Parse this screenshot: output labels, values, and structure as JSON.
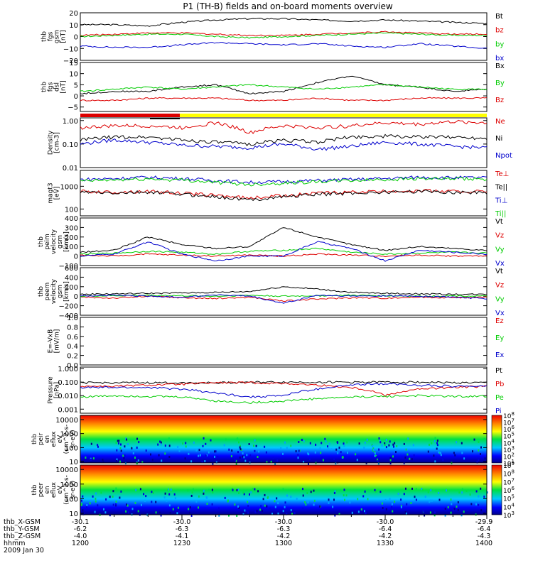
{
  "title": "P1 (TH-B) fields and on-board moments overview",
  "time_axis": {
    "rows": [
      {
        "label": "thb_X-GSM",
        "values": [
          "-30.1",
          "-30.0",
          "-30.0",
          "-30.0",
          "-29.9"
        ]
      },
      {
        "label": "thb_Y-GSM",
        "values": [
          "-6.2",
          "-6.3",
          "-6.3",
          "-6.4",
          "-6.4"
        ]
      },
      {
        "label": "thb_Z-GSM",
        "values": [
          "-4.0",
          "-4.1",
          "-4.2",
          "-4.2",
          "-4.3"
        ]
      },
      {
        "label": "hhmm",
        "values": [
          "1200",
          "1230",
          "1300",
          "1330",
          "1400"
        ]
      }
    ],
    "date": "2009 Jan 30"
  },
  "panels": [
    {
      "id": "fgs",
      "ylabel": [
        "thb",
        "fgs",
        "gsm",
        "[nT]"
      ],
      "log": false,
      "ylim": [
        -20,
        20
      ],
      "ticks": [
        {
          "v": 20,
          "t": "20"
        },
        {
          "v": 10,
          "t": "10"
        },
        {
          "v": 0,
          "t": "0"
        },
        {
          "v": -10,
          "t": "−10"
        },
        {
          "v": -20,
          "t": "−20"
        }
      ],
      "legend": [
        {
          "t": "Bt",
          "c": "#000000"
        },
        {
          "t": "bz",
          "c": "#dd0000"
        },
        {
          "t": "by",
          "c": "#00cc00"
        },
        {
          "t": "bx",
          "c": "#0000cc"
        }
      ]
    },
    {
      "id": "fgs-dsl",
      "ylabel": [
        "thb",
        "fgs",
        "dsl",
        "[nT]"
      ],
      "log": false,
      "ylim": [
        -7,
        15
      ],
      "ticks": [
        {
          "v": 15,
          "t": "15"
        },
        {
          "v": 10,
          "t": "10"
        },
        {
          "v": 5,
          "t": "5"
        },
        {
          "v": 0,
          "t": "0"
        },
        {
          "v": -5,
          "t": "−5"
        }
      ],
      "legend": [
        {
          "t": "Bx",
          "c": "#000000"
        },
        {
          "t": "By",
          "c": "#00cc00"
        },
        {
          "t": "Bz",
          "c": "#dd0000"
        }
      ]
    },
    {
      "id": "density",
      "ylabel": [
        "Density",
        "[cm-3]"
      ],
      "log": true,
      "ylim": [
        0.01,
        1.3
      ],
      "ticks": [
        {
          "v": 1.0,
          "t": "1.00"
        },
        {
          "v": 0.1,
          "t": "0.10"
        },
        {
          "v": 0.01,
          "t": "0.01"
        }
      ],
      "legend": [
        {
          "t": "Ne",
          "c": "#dd0000"
        },
        {
          "t": "Ni",
          "c": "#000000"
        },
        {
          "t": "Npot",
          "c": "#0000cc"
        }
      ]
    },
    {
      "id": "temp",
      "ylabel": [
        "magt3",
        "[eV]"
      ],
      "log": true,
      "ylim": [
        50,
        5000
      ],
      "ticks": [
        {
          "v": 1000,
          "t": "1000"
        },
        {
          "v": 100,
          "t": "100"
        }
      ],
      "legend": [
        {
          "t": "Te⊥",
          "c": "#dd0000"
        },
        {
          "t": "Te||",
          "c": "#000000"
        },
        {
          "t": "Ti⊥",
          "c": "#0000cc"
        },
        {
          "t": "Ti||",
          "c": "#00cc00"
        }
      ]
    },
    {
      "id": "peim-vel",
      "ylabel": [
        "thb",
        "peim",
        "velocity",
        "gsm",
        "[km/s]"
      ],
      "log": false,
      "ylim": [
        -100,
        400
      ],
      "ticks": [
        {
          "v": 400,
          "t": "400"
        },
        {
          "v": 300,
          "t": "300"
        },
        {
          "v": 200,
          "t": "200"
        },
        {
          "v": 100,
          "t": "100"
        },
        {
          "v": 0,
          "t": "0"
        },
        {
          "v": -100,
          "t": "−100"
        }
      ],
      "legend": [
        {
          "t": "Vt",
          "c": "#000000"
        },
        {
          "t": "Vz",
          "c": "#dd0000"
        },
        {
          "t": "Vy",
          "c": "#00cc00"
        },
        {
          "t": "Vx",
          "c": "#0000cc"
        }
      ]
    },
    {
      "id": "peem-vel",
      "ylabel": [
        "thb",
        "peem",
        "velocity",
        "gsm",
        "[km/s]"
      ],
      "log": false,
      "ylim": [
        -400,
        600
      ],
      "ticks": [
        {
          "v": 600,
          "t": "600"
        },
        {
          "v": 400,
          "t": "400"
        },
        {
          "v": 200,
          "t": "200"
        },
        {
          "v": 0,
          "t": "0"
        },
        {
          "v": -200,
          "t": "−200"
        },
        {
          "v": -400,
          "t": "−400"
        }
      ],
      "legend": [
        {
          "t": "Vt",
          "c": "#000000"
        },
        {
          "t": "Vz",
          "c": "#dd0000"
        },
        {
          "t": "Vy",
          "c": "#00cc00"
        },
        {
          "t": "Vx",
          "c": "#0000cc"
        }
      ]
    },
    {
      "id": "efield",
      "ylabel": [
        "E=-VxB",
        "[mV/m]"
      ],
      "log": false,
      "ylim": [
        0,
        1
      ],
      "ticks": [
        {
          "v": 1.0,
          "t": "1.0"
        },
        {
          "v": 0.8,
          "t": "0.8"
        },
        {
          "v": 0.6,
          "t": "0.6"
        },
        {
          "v": 0.4,
          "t": "0.4"
        },
        {
          "v": 0.2,
          "t": "0.2"
        },
        {
          "v": 0.0,
          "t": "0.0"
        }
      ],
      "legend": [
        {
          "t": "Ez",
          "c": "#dd0000"
        },
        {
          "t": "Ey",
          "c": "#00cc00"
        },
        {
          "t": "Ex",
          "c": "#0000cc"
        }
      ]
    },
    {
      "id": "pressure",
      "ylabel": [
        "Pressure",
        "[nPa]"
      ],
      "log": true,
      "ylim": [
        0.0005,
        1.3
      ],
      "ticks": [
        {
          "v": 1.0,
          "t": "1.000"
        },
        {
          "v": 0.1,
          "t": "0.100"
        },
        {
          "v": 0.01,
          "t": "0.010"
        },
        {
          "v": 0.001,
          "t": "0.001"
        }
      ],
      "legend": [
        {
          "t": "Pt",
          "c": "#000000"
        },
        {
          "t": "Pb",
          "c": "#dd0000"
        },
        {
          "t": "Pe",
          "c": "#00cc00"
        },
        {
          "t": "Pi",
          "c": "#0000cc"
        }
      ]
    },
    {
      "id": "peir-eflux",
      "ylabel": [
        "thb",
        "peir",
        "en",
        "eflux",
        "eV",
        "(cm^2-s-",
        "sr-eV)"
      ],
      "log": true,
      "ylim": [
        8,
        20000
      ],
      "ticks": [
        {
          "v": 10000,
          "t": "10000"
        },
        {
          "v": 1000,
          "t": "1000"
        },
        {
          "v": 100,
          "t": "100"
        },
        {
          "v": 10,
          "t": "10"
        }
      ],
      "colorbar": [
        {
          "b": "10",
          "e": "8"
        },
        {
          "b": "10",
          "e": "7"
        },
        {
          "b": "10",
          "e": "6"
        },
        {
          "b": "10",
          "e": "5"
        },
        {
          "b": "10",
          "e": "4"
        },
        {
          "b": "10",
          "e": "3"
        },
        {
          "b": "10",
          "e": "2"
        },
        {
          "b": "10",
          "e": "1"
        }
      ]
    },
    {
      "id": "peer-eflux",
      "ylabel": [
        "thb",
        "peer",
        "en",
        "eflux",
        "eV",
        "(cm^2-s-",
        "sr-eV)"
      ],
      "log": true,
      "ylim": [
        8,
        20000
      ],
      "ticks": [
        {
          "v": 10000,
          "t": "10000"
        },
        {
          "v": 1000,
          "t": "1000"
        },
        {
          "v": 100,
          "t": "100"
        },
        {
          "v": 10,
          "t": "10"
        }
      ],
      "colorbar": [
        {
          "b": "10",
          "e": "9"
        },
        {
          "b": "10",
          "e": "8"
        },
        {
          "b": "10",
          "e": "7"
        },
        {
          "b": "10",
          "e": "6"
        },
        {
          "b": "10",
          "e": "5"
        },
        {
          "b": "10",
          "e": "4"
        },
        {
          "b": "10",
          "e": "3"
        }
      ]
    }
  ],
  "chart_data": {
    "type": "line",
    "x_unit": "hhmm",
    "x": [
      "1200",
      "1210",
      "1220",
      "1230",
      "1240",
      "1250",
      "1300",
      "1310",
      "1320",
      "1330",
      "1340",
      "1350",
      "1400"
    ],
    "panels": [
      {
        "panel": "fgs",
        "series": [
          {
            "name": "Bt",
            "color": "#000000",
            "values": [
              10,
              10,
              9,
              12,
              14,
              15,
              15,
              14,
              13,
              14,
              13,
              12,
              11
            ]
          },
          {
            "name": "bz",
            "color": "#dd0000",
            "values": [
              1,
              2,
              3,
              3,
              2,
              1,
              1,
              2,
              3,
              4,
              3,
              2,
              2
            ]
          },
          {
            "name": "by",
            "color": "#00cc00",
            "values": [
              0,
              1,
              2,
              2,
              0,
              -1,
              0,
              1,
              2,
              3,
              2,
              1,
              1
            ]
          },
          {
            "name": "bx",
            "color": "#0000cc",
            "values": [
              -8,
              -9,
              -9,
              -7,
              -5,
              -6,
              -7,
              -6,
              -8,
              -9,
              -6,
              -8,
              -10
            ]
          }
        ]
      },
      {
        "panel": "fgs-dsl",
        "series": [
          {
            "name": "Bx",
            "color": "#000000",
            "values": [
              1,
              2,
              2,
              4,
              5,
              1,
              2,
              6,
              9,
              5,
              4,
              2,
              3
            ]
          },
          {
            "name": "By",
            "color": "#00cc00",
            "values": [
              2,
              3,
              4,
              3,
              4,
              5,
              4,
              3,
              4,
              5,
              4,
              3,
              3
            ]
          },
          {
            "name": "Bz",
            "color": "#dd0000",
            "values": [
              -2,
              -2,
              -1,
              -1,
              -1,
              -2,
              -2,
              -1,
              -2,
              -2,
              -1,
              -1,
              -1
            ]
          }
        ]
      },
      {
        "panel": "density",
        "series": [
          {
            "name": "Ne",
            "color": "#dd0000",
            "values": [
              0.5,
              0.6,
              0.6,
              0.5,
              0.8,
              0.3,
              0.6,
              0.5,
              0.6,
              0.8,
              0.7,
              0.9,
              0.8
            ]
          },
          {
            "name": "Ni",
            "color": "#000000",
            "values": [
              0.15,
              0.2,
              0.2,
              0.15,
              0.12,
              0.1,
              0.15,
              0.12,
              0.2,
              0.22,
              0.2,
              0.2,
              0.18
            ]
          },
          {
            "name": "Npot",
            "color": "#0000cc",
            "values": [
              0.1,
              0.15,
              0.12,
              0.09,
              0.08,
              0.07,
              0.1,
              0.06,
              0.08,
              0.12,
              0.1,
              0.08,
              0.07
            ]
          }
        ]
      },
      {
        "panel": "temp",
        "series": [
          {
            "name": "Te⊥",
            "color": "#dd0000",
            "values": [
              600,
              550,
              600,
              500,
              400,
              300,
              400,
              500,
              550,
              600,
              650,
              600,
              600
            ]
          },
          {
            "name": "Te||",
            "color": "#000000",
            "values": [
              550,
              500,
              550,
              450,
              350,
              250,
              350,
              450,
              500,
              550,
              600,
              550,
              550
            ]
          },
          {
            "name": "Ti⊥",
            "color": "#0000cc",
            "values": [
              2000,
              2200,
              2500,
              2200,
              1800,
              1500,
              1600,
              1800,
              2000,
              2200,
              2500,
              2400,
              2400
            ]
          },
          {
            "name": "Ti||",
            "color": "#00cc00",
            "values": [
              1700,
              1900,
              2100,
              1900,
              1500,
              1200,
              1400,
              1600,
              1800,
              2000,
              2200,
              2100,
              2100
            ]
          }
        ]
      },
      {
        "panel": "peim-vel",
        "series": [
          {
            "name": "Vt",
            "color": "#000000",
            "values": [
              40,
              60,
              200,
              120,
              80,
              100,
              300,
              200,
              120,
              60,
              100,
              80,
              60
            ]
          },
          {
            "name": "Vz",
            "color": "#dd0000",
            "values": [
              10,
              0,
              20,
              10,
              0,
              10,
              0,
              20,
              10,
              0,
              10,
              0,
              0
            ]
          },
          {
            "name": "Vy",
            "color": "#00cc00",
            "values": [
              20,
              30,
              50,
              40,
              20,
              50,
              60,
              80,
              40,
              20,
              30,
              40,
              30
            ]
          },
          {
            "name": "Vx",
            "color": "#0000cc",
            "values": [
              0,
              20,
              150,
              20,
              -50,
              0,
              0,
              150,
              80,
              -50,
              60,
              40,
              20
            ]
          }
        ]
      },
      {
        "panel": "peem-vel",
        "series": [
          {
            "name": "Vt",
            "color": "#000000",
            "values": [
              40,
              50,
              60,
              70,
              80,
              100,
              200,
              150,
              80,
              60,
              50,
              40,
              40
            ]
          },
          {
            "name": "Vz",
            "color": "#dd0000",
            "values": [
              -20,
              -40,
              0,
              -30,
              -50,
              -20,
              -100,
              -60,
              -30,
              -40,
              -20,
              -30,
              -20
            ]
          },
          {
            "name": "Vy",
            "color": "#00cc00",
            "values": [
              0,
              10,
              20,
              10,
              0,
              20,
              0,
              10,
              20,
              10,
              0,
              10,
              0
            ]
          },
          {
            "name": "Vx",
            "color": "#0000cc",
            "values": [
              10,
              20,
              0,
              -20,
              30,
              0,
              -150,
              20,
              0,
              10,
              0,
              -20,
              -50
            ]
          }
        ]
      },
      {
        "panel": "pressure",
        "series": [
          {
            "name": "Pt",
            "color": "#000000",
            "values": [
              0.09,
              0.09,
              0.09,
              0.09,
              0.09,
              0.1,
              0.1,
              0.1,
              0.1,
              0.1,
              0.1,
              0.09,
              0.09
            ]
          },
          {
            "name": "Pb",
            "color": "#dd0000",
            "values": [
              0.05,
              0.05,
              0.06,
              0.07,
              0.09,
              0.09,
              0.08,
              0.06,
              0.04,
              0.01,
              0.03,
              0.04,
              0.05
            ]
          },
          {
            "name": "Pe",
            "color": "#00cc00",
            "values": [
              0.008,
              0.01,
              0.009,
              0.008,
              0.004,
              0.003,
              0.004,
              0.006,
              0.008,
              0.009,
              0.01,
              0.009,
              0.009
            ]
          },
          {
            "name": "Pi",
            "color": "#0000cc",
            "values": [
              0.04,
              0.04,
              0.04,
              0.03,
              0.015,
              0.008,
              0.01,
              0.03,
              0.06,
              0.08,
              0.06,
              0.05,
              0.05
            ]
          }
        ]
      }
    ]
  }
}
